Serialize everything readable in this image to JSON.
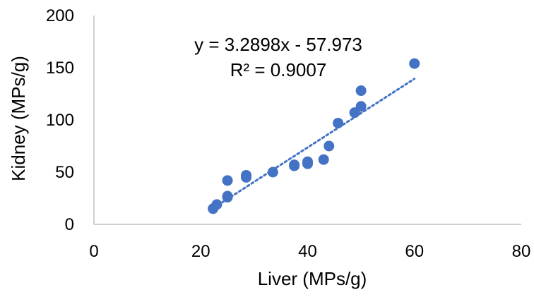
{
  "chart_data": {
    "type": "scatter",
    "title": "",
    "xlabel": "Liver (MPs/g)",
    "ylabel": "Kidney (MPs/g)",
    "xlim": [
      0,
      80
    ],
    "ylim": [
      0,
      200
    ],
    "x_ticks": [
      0,
      20,
      40,
      60,
      80
    ],
    "y_ticks": [
      0,
      50,
      100,
      150,
      200
    ],
    "x_tick_labels": [
      "0",
      "20",
      "40",
      "60",
      "80"
    ],
    "y_tick_labels": [
      "0",
      "50",
      "100",
      "150",
      "200"
    ],
    "grid": false,
    "legend": "none",
    "marker_color": "#4472C4",
    "trendline": {
      "type": "linear",
      "slope": 3.2898,
      "intercept": -57.973,
      "x_range": [
        22.5,
        60
      ],
      "style": "dotted",
      "color": "#4472C4",
      "equation_label": "y = 3.2898x - 57.973",
      "r2_label": "R² = 0.9007"
    },
    "points": [
      {
        "x": 22.3,
        "y": 15
      },
      {
        "x": 23.0,
        "y": 19
      },
      {
        "x": 25.0,
        "y": 26
      },
      {
        "x": 25.0,
        "y": 27
      },
      {
        "x": 25.0,
        "y": 42
      },
      {
        "x": 28.5,
        "y": 45
      },
      {
        "x": 28.5,
        "y": 47
      },
      {
        "x": 33.5,
        "y": 50
      },
      {
        "x": 37.5,
        "y": 56
      },
      {
        "x": 37.5,
        "y": 57
      },
      {
        "x": 40.0,
        "y": 58
      },
      {
        "x": 40.0,
        "y": 60
      },
      {
        "x": 43.0,
        "y": 62
      },
      {
        "x": 44.0,
        "y": 75
      },
      {
        "x": 45.7,
        "y": 97
      },
      {
        "x": 48.8,
        "y": 107
      },
      {
        "x": 50.0,
        "y": 113
      },
      {
        "x": 50.0,
        "y": 128
      },
      {
        "x": 60.0,
        "y": 154
      }
    ]
  }
}
